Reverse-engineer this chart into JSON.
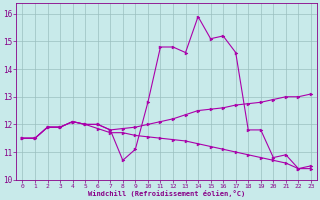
{
  "xlabel": "Windchill (Refroidissement éolien,°C)",
  "background_color": "#c8eaea",
  "grid_color": "#9bbfbf",
  "line_color": "#aa00aa",
  "xlim": [
    -0.5,
    23.5
  ],
  "ylim": [
    10.0,
    16.4
  ],
  "yticks": [
    10,
    11,
    12,
    13,
    14,
    15,
    16
  ],
  "xticks": [
    0,
    1,
    2,
    3,
    4,
    5,
    6,
    7,
    8,
    9,
    10,
    11,
    12,
    13,
    14,
    15,
    16,
    17,
    18,
    19,
    20,
    21,
    22,
    23
  ],
  "curve1_x": [
    0,
    1,
    2,
    3,
    4,
    5,
    6,
    7,
    8,
    9,
    10,
    11,
    12,
    13,
    14,
    15,
    16,
    17,
    18,
    19,
    20,
    21,
    22,
    23
  ],
  "curve1_y": [
    11.5,
    11.5,
    11.9,
    11.9,
    12.1,
    12.0,
    12.0,
    11.8,
    10.7,
    11.1,
    12.8,
    14.8,
    14.8,
    14.6,
    15.9,
    15.1,
    15.2,
    14.6,
    11.8,
    11.8,
    10.8,
    10.9,
    10.4,
    10.5
  ],
  "curve2_x": [
    0,
    1,
    2,
    3,
    4,
    5,
    6,
    7,
    8,
    9,
    10,
    11,
    12,
    13,
    14,
    15,
    16,
    17,
    18,
    19,
    20,
    21,
    22,
    23
  ],
  "curve2_y": [
    11.5,
    11.5,
    11.9,
    11.9,
    12.1,
    12.0,
    12.0,
    11.8,
    11.85,
    11.9,
    12.0,
    12.1,
    12.2,
    12.35,
    12.5,
    12.55,
    12.6,
    12.7,
    12.75,
    12.8,
    12.9,
    13.0,
    13.0,
    13.1
  ],
  "curve3_x": [
    0,
    1,
    2,
    3,
    4,
    5,
    6,
    7,
    8,
    9,
    10,
    11,
    12,
    13,
    14,
    15,
    16,
    17,
    18,
    19,
    20,
    21,
    22,
    23
  ],
  "curve3_y": [
    11.5,
    11.5,
    11.9,
    11.9,
    12.1,
    12.0,
    11.85,
    11.7,
    11.7,
    11.6,
    11.55,
    11.5,
    11.45,
    11.4,
    11.3,
    11.2,
    11.1,
    11.0,
    10.9,
    10.8,
    10.7,
    10.6,
    10.4,
    10.4
  ]
}
